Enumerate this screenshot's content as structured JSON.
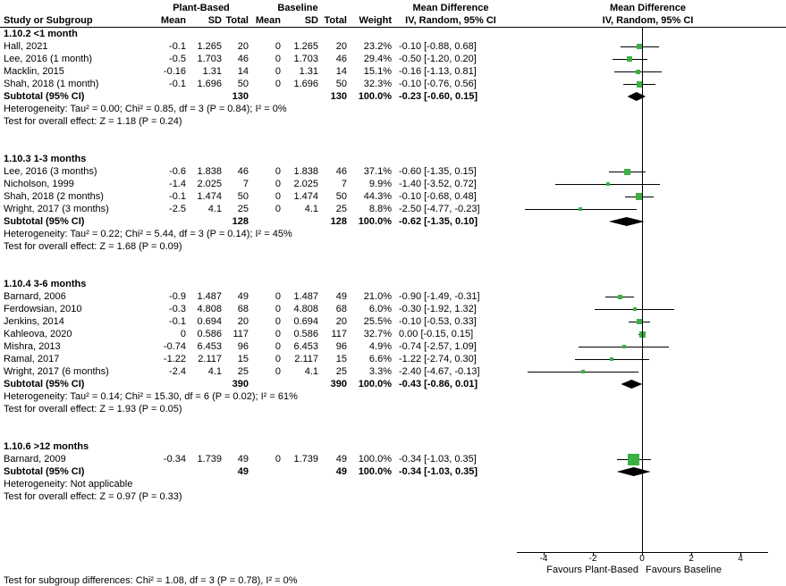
{
  "chart_data": {
    "type": "scatter",
    "subtype": "forest_plot_mean_difference",
    "effect_measure": "Mean Difference, IV, Random, 95% CI",
    "columns": {
      "group1": "Plant-Based",
      "group2": "Baseline",
      "study": "Study or Subgroup",
      "mean": "Mean",
      "sd": "SD",
      "total": "Total",
      "weight": "Weight",
      "md": "Mean Difference",
      "ci": "IV, Random, 95% CI"
    },
    "x_axis": {
      "ticks": [
        "-4",
        "-2",
        "0",
        "2",
        "4"
      ],
      "tick_values": [
        -4,
        -2,
        0,
        2,
        4
      ],
      "favours_left": "Favours Plant-Based",
      "favours_right": "Favours Baseline"
    },
    "footnote": "Test for subgroup differences: Chi² = 1.08, df = 3 (P = 0.78), I² = 0%",
    "colors": {
      "square": "#3CB043",
      "diamond": "#000000",
      "ci_line": "#000000"
    },
    "groups": [
      {
        "title": "1.10.2 <1 month",
        "studies": [
          {
            "name": "Hall, 2021",
            "mean1": "-0.1",
            "sd1": "1.265",
            "total1": "20",
            "mean2": "0",
            "sd2": "1.265",
            "total2": "20",
            "weight": "23.2%",
            "w": 23.2,
            "ci": "-0.10 [-0.88, 0.68]",
            "md": -0.1,
            "lo": -0.88,
            "hi": 0.68
          },
          {
            "name": "Lee, 2016 (1 month)",
            "mean1": "-0.5",
            "sd1": "1.703",
            "total1": "46",
            "mean2": "0",
            "sd2": "1.703",
            "total2": "46",
            "weight": "29.4%",
            "w": 29.4,
            "ci": "-0.50 [-1.20, 0.20]",
            "md": -0.5,
            "lo": -1.2,
            "hi": 0.2
          },
          {
            "name": "Macklin, 2015",
            "mean1": "-0.16",
            "sd1": "1.31",
            "total1": "14",
            "mean2": "0",
            "sd2": "1.31",
            "total2": "14",
            "weight": "15.1%",
            "w": 15.1,
            "ci": "-0.16 [-1.13, 0.81]",
            "md": -0.16,
            "lo": -1.13,
            "hi": 0.81
          },
          {
            "name": "Shah, 2018 (1 month)",
            "mean1": "-0.1",
            "sd1": "1.696",
            "total1": "50",
            "mean2": "0",
            "sd2": "1.696",
            "total2": "50",
            "weight": "32.3%",
            "w": 32.3,
            "ci": "-0.10 [-0.76, 0.56]",
            "md": -0.1,
            "lo": -0.76,
            "hi": 0.56
          }
        ],
        "subtotal": {
          "label": "Subtotal (95% CI)",
          "total1": "130",
          "total2": "130",
          "weight": "100.0%",
          "ci": "-0.23 [-0.60, 0.15]",
          "md": -0.23,
          "lo": -0.6,
          "hi": 0.15
        },
        "heterogeneity": "Heterogeneity: Tau² = 0.00; Chi² = 0.85, df = 3 (P = 0.84); I² = 0%",
        "overall_effect": "Test for overall effect: Z = 1.18 (P = 0.24)"
      },
      {
        "title": "1.10.3 1-3 months",
        "studies": [
          {
            "name": "Lee, 2016 (3 months)",
            "mean1": "-0.6",
            "sd1": "1.838",
            "total1": "46",
            "mean2": "0",
            "sd2": "1.838",
            "total2": "46",
            "weight": "37.1%",
            "w": 37.1,
            "ci": "-0.60 [-1.35, 0.15]",
            "md": -0.6,
            "lo": -1.35,
            "hi": 0.15
          },
          {
            "name": "Nicholson, 1999",
            "mean1": "-1.4",
            "sd1": "2.025",
            "total1": "7",
            "mean2": "0",
            "sd2": "2.025",
            "total2": "7",
            "weight": "9.9%",
            "w": 9.9,
            "ci": "-1.40 [-3.52, 0.72]",
            "md": -1.4,
            "lo": -3.52,
            "hi": 0.72
          },
          {
            "name": "Shah, 2018 (2 months)",
            "mean1": "-0.1",
            "sd1": "1.474",
            "total1": "50",
            "mean2": "0",
            "sd2": "1.474",
            "total2": "50",
            "weight": "44.3%",
            "w": 44.3,
            "ci": "-0.10 [-0.68, 0.48]",
            "md": -0.1,
            "lo": -0.68,
            "hi": 0.48
          },
          {
            "name": "Wright, 2017 (3 months)",
            "mean1": "-2.5",
            "sd1": "4.1",
            "total1": "25",
            "mean2": "0",
            "sd2": "4.1",
            "total2": "25",
            "weight": "8.8%",
            "w": 8.8,
            "ci": "-2.50 [-4.77, -0.23]",
            "md": -2.5,
            "lo": -4.77,
            "hi": -0.23
          }
        ],
        "subtotal": {
          "label": "Subtotal (95% CI)",
          "total1": "128",
          "total2": "128",
          "weight": "100.0%",
          "ci": "-0.62 [-1.35, 0.10]",
          "md": -0.62,
          "lo": -1.35,
          "hi": 0.1
        },
        "heterogeneity": "Heterogeneity: Tau² = 0.22; Chi² = 5.44, df = 3 (P = 0.14); I² = 45%",
        "overall_effect": "Test for overall effect: Z = 1.68 (P = 0.09)"
      },
      {
        "title": "1.10.4 3-6 months",
        "studies": [
          {
            "name": "Barnard, 2006",
            "mean1": "-0.9",
            "sd1": "1.487",
            "total1": "49",
            "mean2": "0",
            "sd2": "1.487",
            "total2": "49",
            "weight": "21.0%",
            "w": 21.0,
            "ci": "-0.90 [-1.49, -0.31]",
            "md": -0.9,
            "lo": -1.49,
            "hi": -0.31
          },
          {
            "name": "Ferdowsian, 2010",
            "mean1": "-0.3",
            "sd1": "4.808",
            "total1": "68",
            "mean2": "0",
            "sd2": "4.808",
            "total2": "68",
            "weight": "6.0%",
            "w": 6.0,
            "ci": "-0.30 [-1.92, 1.32]",
            "md": -0.3,
            "lo": -1.92,
            "hi": 1.32
          },
          {
            "name": "Jenkins, 2014",
            "mean1": "-0.1",
            "sd1": "0.694",
            "total1": "20",
            "mean2": "0",
            "sd2": "0.694",
            "total2": "20",
            "weight": "25.5%",
            "w": 25.5,
            "ci": "-0.10 [-0.53, 0.33]",
            "md": -0.1,
            "lo": -0.53,
            "hi": 0.33
          },
          {
            "name": "Kahleova, 2020",
            "mean1": "0",
            "sd1": "0.586",
            "total1": "117",
            "mean2": "0",
            "sd2": "0.586",
            "total2": "117",
            "weight": "32.7%",
            "w": 32.7,
            "ci": "0.00 [-0.15, 0.15]",
            "md": 0.0,
            "lo": -0.15,
            "hi": 0.15
          },
          {
            "name": "Mishra, 2013",
            "mean1": "-0.74",
            "sd1": "6.453",
            "total1": "96",
            "mean2": "0",
            "sd2": "6.453",
            "total2": "96",
            "weight": "4.9%",
            "w": 4.9,
            "ci": "-0.74 [-2.57, 1.09]",
            "md": -0.74,
            "lo": -2.57,
            "hi": 1.09
          },
          {
            "name": "Ramal, 2017",
            "mean1": "-1.22",
            "sd1": "2.117",
            "total1": "15",
            "mean2": "0",
            "sd2": "2.117",
            "total2": "15",
            "weight": "6.6%",
            "w": 6.6,
            "ci": "-1.22 [-2.74, 0.30]",
            "md": -1.22,
            "lo": -2.74,
            "hi": 0.3
          },
          {
            "name": "Wright, 2017 (6 months)",
            "mean1": "-2.4",
            "sd1": "4.1",
            "total1": "25",
            "mean2": "0",
            "sd2": "4.1",
            "total2": "25",
            "weight": "3.3%",
            "w": 3.3,
            "ci": "-2.40 [-4.67, -0.13]",
            "md": -2.4,
            "lo": -4.67,
            "hi": -0.13
          }
        ],
        "subtotal": {
          "label": "Subtotal (95% CI)",
          "total1": "390",
          "total2": "390",
          "weight": "100.0%",
          "ci": "-0.43 [-0.86, 0.01]",
          "md": -0.43,
          "lo": -0.86,
          "hi": 0.01
        },
        "heterogeneity": "Heterogeneity: Tau² = 0.14; Chi² = 15.30, df = 6 (P = 0.02); I² = 61%",
        "overall_effect": "Test for overall effect: Z = 1.93 (P = 0.05)"
      },
      {
        "title": "1.10.6 >12 months",
        "studies": [
          {
            "name": "Barnard, 2009",
            "mean1": "-0.34",
            "sd1": "1.739",
            "total1": "49",
            "mean2": "0",
            "sd2": "1.739",
            "total2": "49",
            "weight": "100.0%",
            "w": 100.0,
            "ci": "-0.34 [-1.03, 0.35]",
            "md": -0.34,
            "lo": -1.03,
            "hi": 0.35
          }
        ],
        "subtotal": {
          "label": "Subtotal (95% CI)",
          "total1": "49",
          "total2": "49",
          "weight": "100.0%",
          "ci": "-0.34 [-1.03, 0.35]",
          "md": -0.34,
          "lo": -1.03,
          "hi": 0.35
        },
        "heterogeneity": "Heterogeneity: Not applicable",
        "overall_effect": "Test for overall effect: Z = 0.97 (P = 0.33)"
      }
    ]
  }
}
